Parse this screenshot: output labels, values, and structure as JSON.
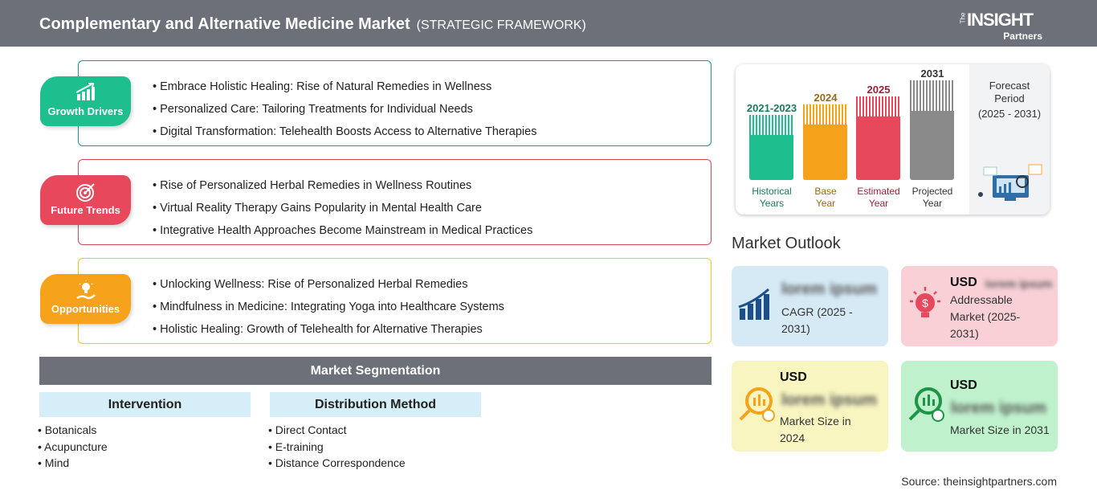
{
  "header": {
    "title": "Complementary and Alternative Medicine Market",
    "subtitle": "(STRATEGIC FRAMEWORK)",
    "logo": "The INSIGHT Partners"
  },
  "sections": [
    {
      "label": "Growth Drivers",
      "icon": "chart-growth-icon",
      "color": "#1dbf8e",
      "border": "#1a9c76",
      "items": [
        "Embrace Holistic Healing: Rise of Natural Remedies in Wellness",
        "Personalized Care: Tailoring Treatments for Individual Needs",
        "Digital Transformation: Telehealth Boosts Access to Alternative Therapies"
      ]
    },
    {
      "label": "Future Trends",
      "icon": "target-icon",
      "color": "#e8485c",
      "border": "#d04a5a",
      "items": [
        "Rise of Personalized Herbal Remedies in Wellness Routines",
        "Virtual Reality Therapy Gains Popularity in Mental Health Care",
        "Integrative Health Approaches Become Mainstream in Medical Practices"
      ]
    },
    {
      "label": "Opportunities",
      "icon": "lightbulb-hand-icon",
      "color": "#f7a21b",
      "border": "#f2c21a",
      "items": [
        "Unlocking Wellness: Rise of Personalized Herbal Remedies",
        "Mindfulness in Medicine: Integrating Yoga into Healthcare Systems",
        "Holistic Healing: Growth of Telehealth for Alternative Therapies"
      ]
    }
  ],
  "segmentation": {
    "title": "Market Segmentation",
    "groups": [
      {
        "title": "Intervention",
        "items": [
          "Botanicals",
          "Acupuncture",
          "Mind"
        ]
      },
      {
        "title": "Distribution Method",
        "items": [
          "Direct Contact",
          "E-training",
          "Distance Correspondence"
        ]
      }
    ]
  },
  "timeline": {
    "bars": [
      {
        "year": "2021-2023",
        "label1": "Historical",
        "label2": "Years",
        "color": "#1dbf8e",
        "text": "#1a7a5e"
      },
      {
        "year": "2024",
        "label1": "Base",
        "label2": "Year",
        "color": "#f7a21b",
        "text": "#9a6a10"
      },
      {
        "year": "2025",
        "label1": "Estimated",
        "label2": "Year",
        "color": "#e8485c",
        "text": "#a0203a"
      },
      {
        "year": "2031",
        "label1": "Projected",
        "label2": "Year",
        "color": "#8a8a8a",
        "text": "#333333"
      }
    ],
    "forecast1": "Forecast",
    "forecast2": "Period",
    "forecast3": "(2025 - 2031)"
  },
  "outlook": {
    "title": "Market Outlook",
    "cards": [
      {
        "usd": "",
        "value": "lorem ipsum",
        "label": "CAGR (2025 - 2031)",
        "bg": "#d6eaf6"
      },
      {
        "usd": "USD",
        "value": "lorem ipsum",
        "label": "Addressable Market (2025-2031)",
        "bg": "#f8d0d6"
      },
      {
        "usd": "USD",
        "value": "lorem ipsum",
        "label": "Market Size in 2024",
        "bg": "#f8f5c0"
      },
      {
        "usd": "USD",
        "value": "lorem ipsum",
        "label": "Market Size in 2031",
        "bg": "#bff2cc"
      }
    ]
  },
  "source": "Source: theinsightpartners.com"
}
